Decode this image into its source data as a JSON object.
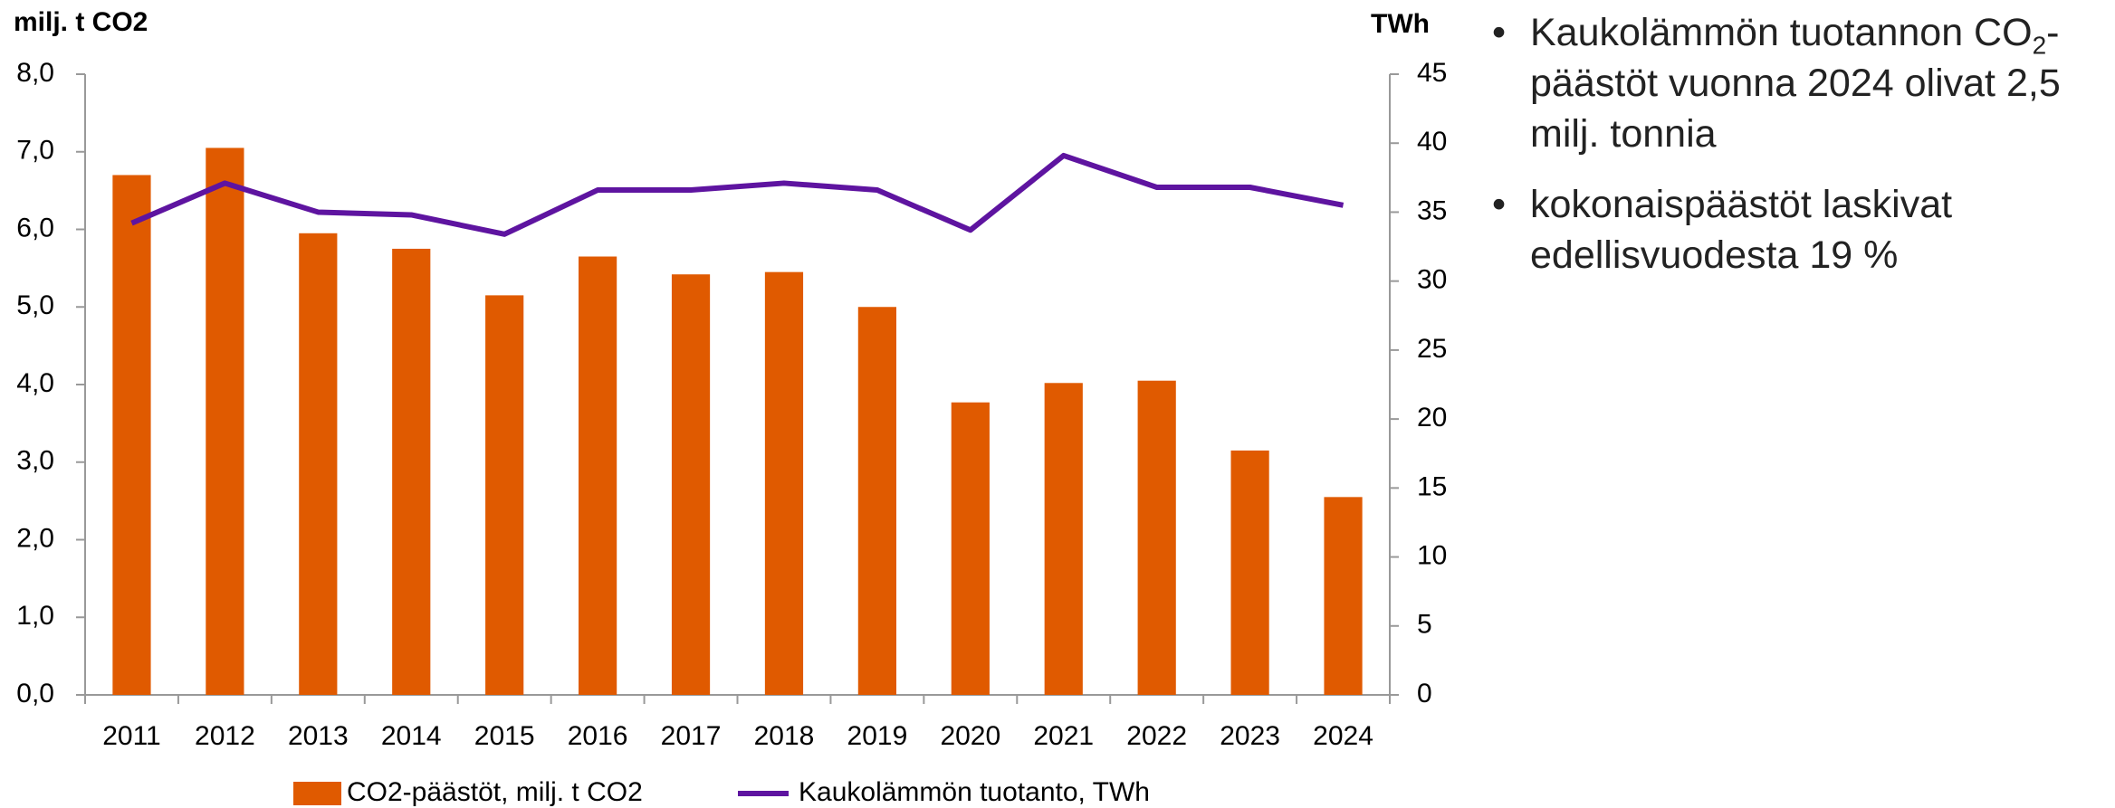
{
  "chart_data": {
    "type": "bar_line",
    "y_label": "milj. t CO2",
    "y2_label": "TWh",
    "categories": [
      "2011",
      "2012",
      "2013",
      "2014",
      "2015",
      "2016",
      "2017",
      "2018",
      "2019",
      "2020",
      "2021",
      "2022",
      "2023",
      "2024"
    ],
    "series": [
      {
        "name": "CO2-päästöt, milj. t CO2",
        "type": "bar",
        "color": "#e05a00",
        "values": [
          6.7,
          7.05,
          5.95,
          5.75,
          5.15,
          5.65,
          5.42,
          5.45,
          5.0,
          3.77,
          4.02,
          4.05,
          3.15,
          2.55
        ]
      },
      {
        "name": "Kaukolämmön tuotanto, TWh",
        "type": "line",
        "axis": "y2",
        "color": "#5e14a0",
        "values": [
          34.2,
          37.1,
          35.0,
          34.8,
          33.4,
          36.6,
          36.6,
          37.1,
          36.6,
          33.7,
          39.1,
          36.8,
          36.8,
          35.5
        ]
      }
    ],
    "ylim": [
      0,
      8
    ],
    "yticks": [
      {
        "value": 0,
        "label": "0,0"
      },
      {
        "value": 1,
        "label": "1,0"
      },
      {
        "value": 2,
        "label": "2,0"
      },
      {
        "value": 3,
        "label": "3,0"
      },
      {
        "value": 4,
        "label": "4,0"
      },
      {
        "value": 5,
        "label": "5,0"
      },
      {
        "value": 6,
        "label": "6,0"
      },
      {
        "value": 7,
        "label": "7,0"
      },
      {
        "value": 8,
        "label": "8,0"
      }
    ],
    "y2lim": [
      0,
      45
    ],
    "y2ticks": [
      0,
      5,
      10,
      15,
      20,
      25,
      30,
      35,
      40,
      45
    ],
    "legend": "bottom"
  },
  "notes": {
    "bullets": [
      {
        "parts": [
          "Kaukolämmön tuotannon CO",
          "2",
          "-päästöt vuonna 2024 olivat 2,5 milj. tonnia"
        ]
      },
      {
        "parts": [
          "kokonaispäästöt laskivat edellisvuodesta 19 %"
        ]
      }
    ]
  }
}
